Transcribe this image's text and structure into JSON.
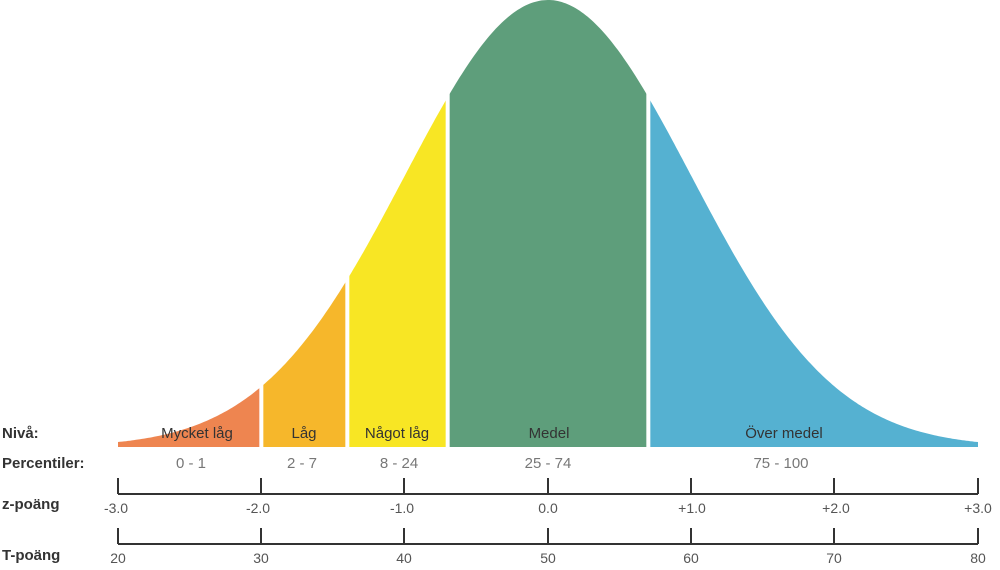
{
  "row_labels": {
    "niva": "Nivå:",
    "percentiler": "Percentiler:",
    "z": "z-poäng",
    "t": "T-poäng"
  },
  "levels": [
    {
      "name": "Mycket låg",
      "percentile": "0 - 1",
      "z_from": -3.0,
      "z_to": -2.0,
      "color": "#EE8550"
    },
    {
      "name": "Låg",
      "percentile": "2 - 7",
      "z_from": -2.0,
      "z_to": -1.4,
      "color": "#F6B72B"
    },
    {
      "name": "Något låg",
      "percentile": "8 - 24",
      "z_from": -1.4,
      "z_to": -0.7,
      "color": "#F8E624"
    },
    {
      "name": "Medel",
      "percentile": "25 - 74",
      "z_from": -0.7,
      "z_to": 0.7,
      "color": "#5E9E7B"
    },
    {
      "name": "Över medel",
      "percentile": "75 - 100",
      "z_from": 0.7,
      "z_to": 3.0,
      "color": "#55B1D1"
    }
  ],
  "z_ticks": [
    "-3.0",
    "-2.0",
    "-1.0",
    "0.0",
    "+1.0",
    "+2.0",
    "+3.0"
  ],
  "t_ticks": [
    "20",
    "30",
    "40",
    "50",
    "60",
    "70",
    "80"
  ]
}
